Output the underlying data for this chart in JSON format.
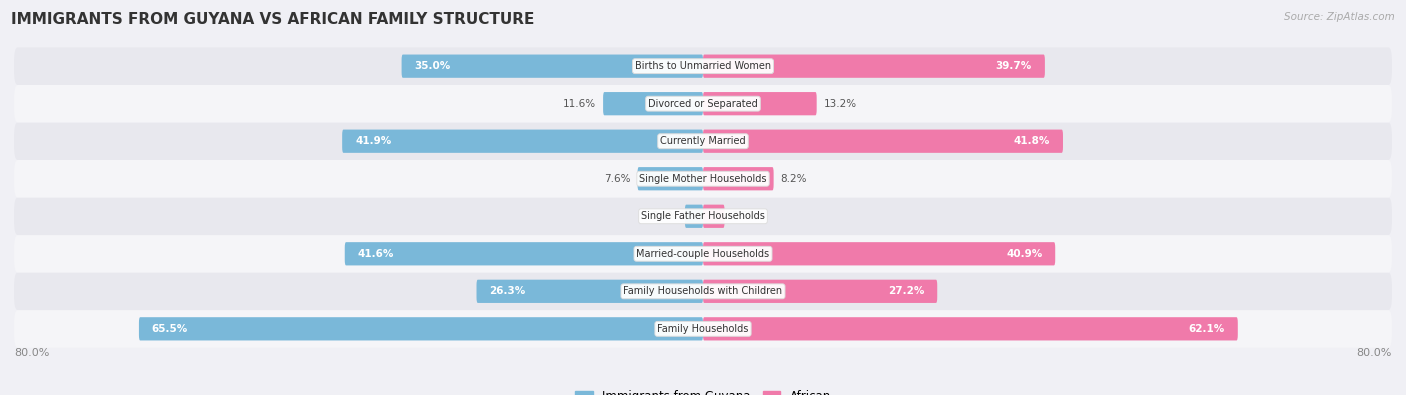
{
  "title": "IMMIGRANTS FROM GUYANA VS AFRICAN FAMILY STRUCTURE",
  "source": "Source: ZipAtlas.com",
  "categories": [
    "Family Households",
    "Family Households with Children",
    "Married-couple Households",
    "Single Father Households",
    "Single Mother Households",
    "Currently Married",
    "Divorced or Separated",
    "Births to Unmarried Women"
  ],
  "guyana_values": [
    65.5,
    26.3,
    41.6,
    2.1,
    7.6,
    41.9,
    11.6,
    35.0
  ],
  "african_values": [
    62.1,
    27.2,
    40.9,
    2.5,
    8.2,
    41.8,
    13.2,
    39.7
  ],
  "max_value": 80.0,
  "guyana_color": "#7ab8d9",
  "african_color": "#f07aaa",
  "guyana_color_light": "#aed0e8",
  "african_color_light": "#f5a8c8",
  "guyana_label": "Immigrants from Guyana",
  "african_label": "African",
  "background_color": "#f0f0f5",
  "row_bg_light": "#f5f5f8",
  "row_bg_dark": "#e8e8ee",
  "axis_label": "80.0%",
  "label_inside_threshold": 15.0
}
